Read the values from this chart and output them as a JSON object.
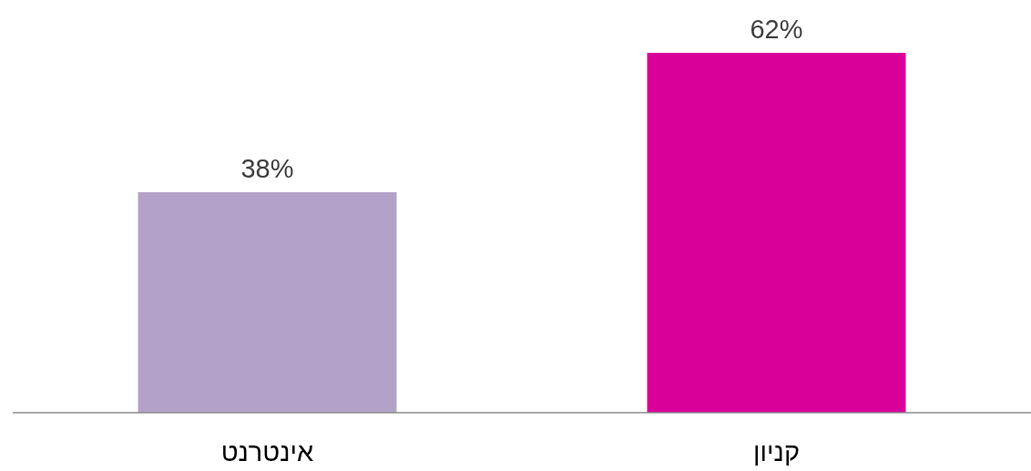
{
  "chart_data": {
    "type": "bar",
    "categories": [
      "אינטרנט",
      "קניון"
    ],
    "values": [
      38,
      62
    ],
    "colors": [
      "#b3a2c7",
      "#d9009a"
    ],
    "value_labels": [
      "38%",
      "62%"
    ]
  }
}
